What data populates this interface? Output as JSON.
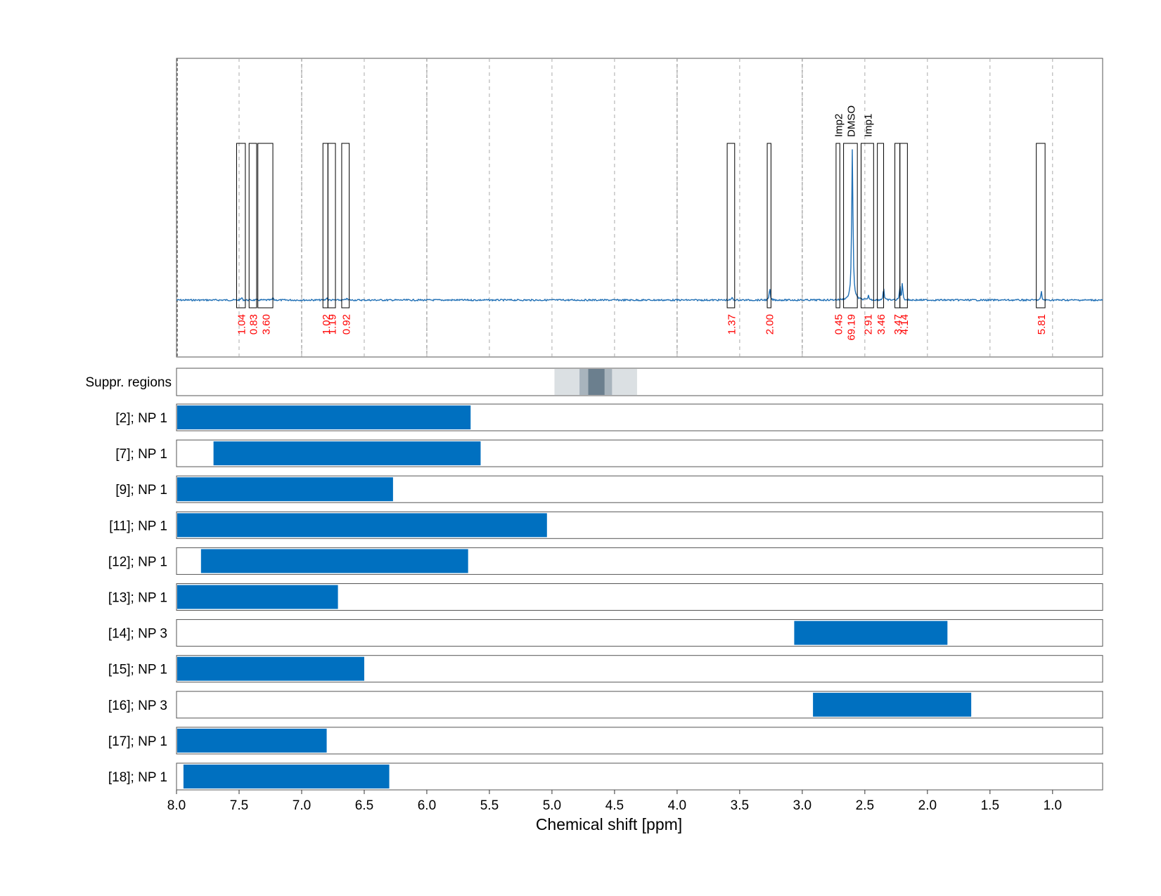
{
  "chart_data": {
    "type": "nmr-spectrum",
    "title": "",
    "xlabel": "Chemical shift [ppm]",
    "ylabel": "",
    "xlim": [
      8.0,
      0.6
    ],
    "x_reversed": true,
    "x_ticks": [
      8.0,
      7.5,
      7.0,
      6.5,
      6.0,
      5.5,
      5.0,
      4.5,
      4.0,
      3.5,
      3.0,
      2.5,
      2.0,
      1.5,
      1.0
    ],
    "x_tick_labels": [
      "8.0",
      "7.5",
      "7.0",
      "6.5",
      "6.0",
      "5.5",
      "5.0",
      "4.5",
      "4.0",
      "3.5",
      "3.0",
      "2.5",
      "2.0",
      "1.5",
      "1.0"
    ],
    "grid": true,
    "colors": {
      "spectrum": "#1f6fb5",
      "bar": "#0070c0",
      "integral_text": "#ff0000",
      "frame": "#555555",
      "grid": "#aaaaaa"
    },
    "spectrum_peaks": [
      {
        "ppm": 7.48,
        "height": 0.02
      },
      {
        "ppm": 7.23,
        "height": 0.015
      },
      {
        "ppm": 6.8,
        "height": 0.02
      },
      {
        "ppm": 6.64,
        "height": 0.015
      },
      {
        "ppm": 3.56,
        "height": 0.02
      },
      {
        "ppm": 3.26,
        "height": 0.09
      },
      {
        "ppm": 2.6,
        "height": 1.0
      },
      {
        "ppm": 2.47,
        "height": 0.03
      },
      {
        "ppm": 2.35,
        "height": 0.09
      },
      {
        "ppm": 2.22,
        "height": 0.1
      },
      {
        "ppm": 2.2,
        "height": 0.12
      },
      {
        "ppm": 1.09,
        "height": 0.06
      }
    ],
    "integration_regions": [
      {
        "start": 7.52,
        "end": 7.45,
        "integral": "1.04"
      },
      {
        "start": 7.42,
        "end": 7.36,
        "integral": "0.83"
      },
      {
        "start": 7.35,
        "end": 7.23,
        "integral": "3.60"
      },
      {
        "start": 6.83,
        "end": 6.79,
        "integral": "1.02"
      },
      {
        "start": 6.79,
        "end": 6.73,
        "integral": "1.19"
      },
      {
        "start": 6.68,
        "end": 6.62,
        "integral": "0.92"
      },
      {
        "start": 3.6,
        "end": 3.54,
        "integral": "1.37"
      },
      {
        "start": 3.28,
        "end": 3.25,
        "integral": "2.00"
      },
      {
        "start": 2.73,
        "end": 2.7,
        "integral": "0.45",
        "label": "Imp2"
      },
      {
        "start": 2.67,
        "end": 2.56,
        "integral": "69.19",
        "label": "DMSO"
      },
      {
        "start": 2.53,
        "end": 2.43,
        "integral": "2.91",
        "label": "Imp1"
      },
      {
        "start": 2.4,
        "end": 2.35,
        "integral": "3.46"
      },
      {
        "start": 2.26,
        "end": 2.22,
        "integral": "3.47"
      },
      {
        "start": 2.22,
        "end": 2.16,
        "integral": "4.14"
      },
      {
        "start": 1.13,
        "end": 1.06,
        "integral": "5.81"
      }
    ],
    "suppression": {
      "label": "Suppr. regions",
      "bands": [
        {
          "start": 4.98,
          "end": 4.32,
          "intensity": 0.2
        },
        {
          "start": 4.78,
          "end": 4.52,
          "intensity": 0.35
        },
        {
          "start": 4.71,
          "end": 4.58,
          "intensity": 0.65
        }
      ]
    },
    "tracks": [
      {
        "label": "[2]; NP 1",
        "start": 8.0,
        "end": 5.65
      },
      {
        "label": "[7]; NP 1",
        "start": 7.71,
        "end": 5.57
      },
      {
        "label": "[9]; NP 1",
        "start": 8.0,
        "end": 6.27
      },
      {
        "label": "[11]; NP 1",
        "start": 8.0,
        "end": 5.04
      },
      {
        "label": "[12]; NP 1",
        "start": 7.81,
        "end": 5.67
      },
      {
        "label": "[13]; NP 1",
        "start": 8.0,
        "end": 6.71
      },
      {
        "label": "[14]; NP 3",
        "start": 3.07,
        "end": 1.84
      },
      {
        "label": "[15]; NP 1",
        "start": 8.0,
        "end": 6.5
      },
      {
        "label": "[16]; NP 3",
        "start": 2.92,
        "end": 1.65
      },
      {
        "label": "[17]; NP 1",
        "start": 8.0,
        "end": 6.8
      },
      {
        "label": "[18]; NP 1",
        "start": 7.95,
        "end": 6.3
      }
    ]
  }
}
